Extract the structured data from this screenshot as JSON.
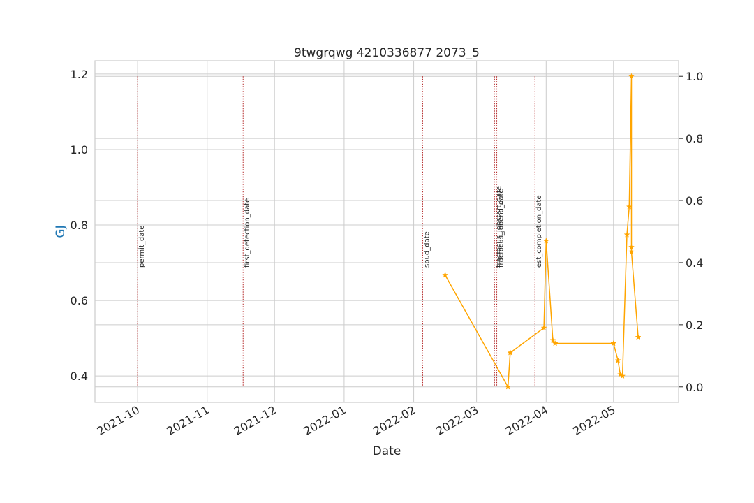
{
  "chart_data": {
    "type": "line",
    "title": "9twgrqwg 4210336877 2073_5",
    "xlabel": "Date",
    "ylabel": "GJ",
    "colors": {
      "series": "#ffa500",
      "ylabel": "#1f77b4",
      "event_line": "#b22222",
      "grid": "#cccccc",
      "frame": "#cccccc"
    },
    "grid": true,
    "x_axis": {
      "type": "date",
      "range": [
        "2021-09-12",
        "2022-05-30"
      ],
      "ticks": [
        "2021-10-01",
        "2021-11-01",
        "2021-12-01",
        "2022-01-01",
        "2022-02-01",
        "2022-03-01",
        "2022-04-01",
        "2022-05-01"
      ],
      "tick_labels": [
        "2021-10",
        "2021-11",
        "2021-12",
        "2022-01",
        "2022-02",
        "2022-03",
        "2022-04",
        "2022-05"
      ]
    },
    "y_left": {
      "range": [
        0.33,
        1.235
      ],
      "ticks": [
        0.4,
        0.6,
        0.8,
        1.0,
        1.2
      ],
      "tick_labels": [
        "0.4",
        "0.6",
        "0.8",
        "1.0",
        "1.2"
      ]
    },
    "y_right": {
      "range": [
        -0.05,
        1.05
      ],
      "ticks": [
        0.0,
        0.2,
        0.4,
        0.6,
        0.8,
        1.0
      ],
      "tick_labels": [
        "0.0",
        "0.2",
        "0.4",
        "0.6",
        "0.8",
        "1.0"
      ]
    },
    "events": [
      {
        "label": "permit_date",
        "date": "2021-10-01"
      },
      {
        "label": "first_detection_date",
        "date": "2021-11-17"
      },
      {
        "label": "spud_date",
        "date": "2022-02-05"
      },
      {
        "label": "fracfocus_jobstart_date",
        "date": "2022-03-09"
      },
      {
        "label": "fracfocus_jobend_date",
        "date": "2022-03-10"
      },
      {
        "label": "est_completion_date",
        "date": "2022-03-27"
      }
    ],
    "series": [
      {
        "axis": "right",
        "marker": "star",
        "points": [
          {
            "x": "2022-02-15",
            "y": 0.36
          },
          {
            "x": "2022-03-15",
            "y": 0.0
          },
          {
            "x": "2022-03-16",
            "y": 0.11
          },
          {
            "x": "2022-03-31",
            "y": 0.19
          },
          {
            "x": "2022-04-01",
            "y": 0.47
          },
          {
            "x": "2022-04-04",
            "y": 0.15
          },
          {
            "x": "2022-04-05",
            "y": 0.14
          },
          {
            "x": "2022-05-01",
            "y": 0.14
          },
          {
            "x": "2022-05-03",
            "y": 0.085
          },
          {
            "x": "2022-05-04",
            "y": 0.04
          },
          {
            "x": "2022-05-05",
            "y": 0.035
          },
          {
            "x": "2022-05-07",
            "y": 0.49
          },
          {
            "x": "2022-05-08",
            "y": 0.58
          },
          {
            "x": "2022-05-09",
            "y": 1.0
          },
          {
            "x": "2022-05-09",
            "y": 0.45
          },
          {
            "x": "2022-05-09",
            "y": 0.435
          },
          {
            "x": "2022-05-12",
            "y": 0.16
          }
        ]
      }
    ]
  }
}
